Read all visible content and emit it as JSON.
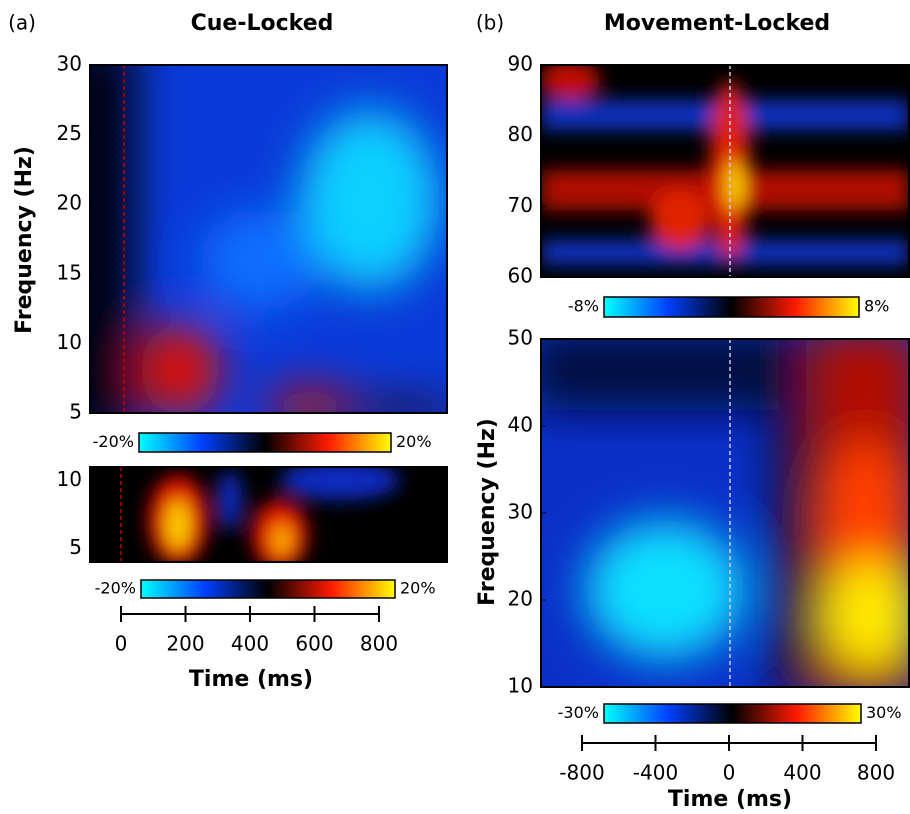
{
  "chart_data": [
    {
      "type": "heatmap",
      "panel_label": "(a)",
      "title": "Cue-Locked",
      "ylabel": "Frequency (Hz)",
      "ylim": [
        5,
        30
      ],
      "yticks": [
        5,
        10,
        15,
        20,
        25,
        30
      ],
      "colorbar": {
        "lim": [
          -20,
          20
        ],
        "ticks": [
          {
            "value": -20,
            "label": "-20%"
          },
          {
            "value": 20,
            "label": "20%"
          }
        ]
      }
    },
    {
      "type": "heatmap",
      "ylim": [
        4,
        11
      ],
      "yticks": [
        5,
        10
      ],
      "colorbar": {
        "lim": [
          -20,
          20
        ],
        "ticks": [
          {
            "value": -20,
            "label": "-20%"
          },
          {
            "value": 20,
            "label": "20%"
          }
        ]
      },
      "xlabel": "Time (ms)",
      "xlim": [
        0,
        800
      ],
      "xticks": [
        0,
        200,
        400,
        600,
        800
      ]
    },
    {
      "type": "heatmap",
      "panel_label": "(b)",
      "title": "Movement-Locked",
      "ylim": [
        60,
        90
      ],
      "yticks": [
        60,
        70,
        80,
        90
      ],
      "colorbar": {
        "lim": [
          -8,
          8
        ],
        "ticks": [
          {
            "value": -8,
            "label": "-8%"
          },
          {
            "value": 8,
            "label": "8%"
          }
        ]
      }
    },
    {
      "type": "heatmap",
      "ylabel": "Frequency (Hz)",
      "ylim": [
        10,
        50
      ],
      "yticks": [
        10,
        20,
        30,
        40,
        50
      ],
      "colorbar": {
        "lim": [
          -30,
          30
        ],
        "ticks": [
          {
            "value": -30,
            "label": "-30%"
          },
          {
            "value": 30,
            "label": "30%"
          }
        ]
      },
      "xlabel": "Time (ms)",
      "xlim": [
        -800,
        800
      ],
      "xticks": [
        -800,
        -400,
        0,
        400,
        800
      ]
    }
  ]
}
